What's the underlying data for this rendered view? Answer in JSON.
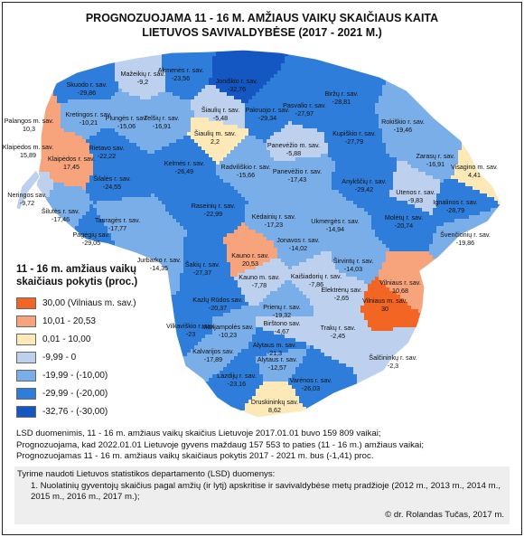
{
  "title": {
    "line1": "PROGNOZUOJAMA 11 - 16 M. AMŽIAUS VAIKŲ SKAIČIAUS KAITA",
    "line2": "LIETUVOS SAVIVALDYBĖSE (2017 - 2021 M.)"
  },
  "colors": {
    "sea": "#ffffff",
    "border": "#ffffff",
    "frame": "#222222"
  },
  "legend": {
    "title_line1": "11 - 16 m. amžiaus vaikų",
    "title_line2": "skaičiaus pokytis (proc.)",
    "classes": [
      {
        "label": "30,00 (Vilniaus m. sav.)",
        "color": "#f26522"
      },
      {
        "label": "10,01 - 20,53",
        "color": "#f7a47c"
      },
      {
        "label": "0,01 - 10,00",
        "color": "#fde9b8"
      },
      {
        "label": "-9,99 - 0",
        "color": "#bdd0ee"
      },
      {
        "label": "-19,99 - (-10,00)",
        "color": "#7aaee8"
      },
      {
        "label": "-29,99 - (-20,00)",
        "color": "#2f7ddb"
      },
      {
        "label": "-32,76 - (-30,00)",
        "color": "#1457c2"
      }
    ]
  },
  "municipalities": [
    {
      "name": "Mažeikių r. sav.",
      "value": "-9,2",
      "class": 3
    },
    {
      "name": "Akmenės r. sav.",
      "value": "-23,56",
      "class": 5
    },
    {
      "name": "Joniškio r. sav.",
      "value": "-32,76",
      "class": 6
    },
    {
      "name": "Biržų r. sav.",
      "value": "-28,81",
      "class": 5
    },
    {
      "name": "Skuodo r. sav.",
      "value": "-29,86",
      "class": 5
    },
    {
      "name": "Pasvalio r. sav.",
      "value": "-27,97",
      "class": 5
    },
    {
      "name": "Pakruojo r. sav.",
      "value": "-29,34",
      "class": 5
    },
    {
      "name": "Šiaulių r. sav.",
      "value": "-5,48",
      "class": 3
    },
    {
      "name": "Šiaulių m. sav.",
      "value": "2,2",
      "class": 2
    },
    {
      "name": "Kretingos r. sav.",
      "value": "-10,21",
      "class": 4
    },
    {
      "name": "Plungės r. sav.",
      "value": "-15,06",
      "class": 4
    },
    {
      "name": "Telšių r. sav.",
      "value": "-16,91",
      "class": 4
    },
    {
      "name": "Palangos m. sav.",
      "value": "10,3",
      "class": 1
    },
    {
      "name": "Klaipėdos m. sav.",
      "value": "15,89",
      "class": 1
    },
    {
      "name": "Klaipėdos r. sav.",
      "value": "17,45",
      "class": 1
    },
    {
      "name": "Rokiškio r. sav.",
      "value": "-19,46",
      "class": 4
    },
    {
      "name": "Kupiškio r. sav.",
      "value": "-27,79",
      "class": 5
    },
    {
      "name": "Panevėžio m. sav.",
      "value": "-5,88",
      "class": 3
    },
    {
      "name": "Panevėžio r. sav.",
      "value": "-17,43",
      "class": 4
    },
    {
      "name": "Zarasų r. sav.",
      "value": "-16,91",
      "class": 4
    },
    {
      "name": "Visagino m. sav.",
      "value": "4,41",
      "class": 2
    },
    {
      "name": "Rietavo sav.",
      "value": "-22,22",
      "class": 5
    },
    {
      "name": "Kelmės r. sav.",
      "value": "-26,49",
      "class": 5
    },
    {
      "name": "Radviliškio r. sav.",
      "value": "-15,66",
      "class": 4
    },
    {
      "name": "Anykščių r. sav.",
      "value": "-29,42",
      "class": 5
    },
    {
      "name": "Utenos r. sav.",
      "value": "-9,83",
      "class": 3
    },
    {
      "name": "Ignalinos r. sav.",
      "value": "-28,79",
      "class": 5
    },
    {
      "name": "Šilalės r. sav.",
      "value": "-24,55",
      "class": 5
    },
    {
      "name": "Kėdainių r. sav.",
      "value": "-17,23",
      "class": 4
    },
    {
      "name": "Molėtų r. sav.",
      "value": "-20,74",
      "class": 5
    },
    {
      "name": "Neringos sav.",
      "value": "-9,72",
      "class": 3
    },
    {
      "name": "Šilutės r. sav.",
      "value": "-17,46",
      "class": 4
    },
    {
      "name": "Tauragės r. sav.",
      "value": "-17,77",
      "class": 4
    },
    {
      "name": "Raseinių r. sav.",
      "value": "-22,99",
      "class": 5
    },
    {
      "name": "Ukmergės r. sav.",
      "value": "-14,94",
      "class": 4
    },
    {
      "name": "Švenčionių r. sav.",
      "value": "-19,86",
      "class": 4
    },
    {
      "name": "Pagėgių sav.",
      "value": "-29,05",
      "class": 5
    },
    {
      "name": "Jurbarko r. sav.",
      "value": "-14,35",
      "class": 4
    },
    {
      "name": "Jonavos r. sav.",
      "value": "-14,02",
      "class": 4
    },
    {
      "name": "Širvintų r. sav.",
      "value": "-14,03",
      "class": 4
    },
    {
      "name": "Kauno r. sav.",
      "value": "20,53",
      "class": 1
    },
    {
      "name": "Kauno m. sav.",
      "value": "-7,78",
      "class": 3
    },
    {
      "name": "Šakių r. sav.",
      "value": "-27,37",
      "class": 5
    },
    {
      "name": "Kaišiadorių r. sav.",
      "value": "-7,86",
      "class": 3
    },
    {
      "name": "Elektrėnų sav.",
      "value": "-2,65",
      "class": 3
    },
    {
      "name": "Vilniaus r. sav.",
      "value": "10,68",
      "class": 1
    },
    {
      "name": "Vilniaus m. sav.",
      "value": "30",
      "class": 0
    },
    {
      "name": "Kazlų Rūdos sav.",
      "value": "-20,37",
      "class": 5
    },
    {
      "name": "Prienų r. sav.",
      "value": "-19,32",
      "class": 4
    },
    {
      "name": "Vilkaviškio r. sav.",
      "value": "-23",
      "class": 5
    },
    {
      "name": "Marijampolės sav.",
      "value": "-10,23",
      "class": 4
    },
    {
      "name": "Birštono sav.",
      "value": "-4,67",
      "class": 3
    },
    {
      "name": "Trakų r. sav.",
      "value": "-2,45",
      "class": 3
    },
    {
      "name": "Kalvarijos sav.",
      "value": "-17,89",
      "class": 4
    },
    {
      "name": "Alytaus m. sav.",
      "value": "-21,3",
      "class": 5
    },
    {
      "name": "Alytaus r. sav.",
      "value": "-12,57",
      "class": 4
    },
    {
      "name": "Šalčininkų r. sav.",
      "value": "-2,3",
      "class": 3
    },
    {
      "name": "Lazdijų r. sav.",
      "value": "-23,16",
      "class": 5
    },
    {
      "name": "Varėnos r. sav.",
      "value": "-26,03",
      "class": 5
    },
    {
      "name": "Druskininkų sav.",
      "value": "8,62",
      "class": 2
    }
  ],
  "notes": {
    "line1": "LSD duomenimis, 11 - 16 m. amžiaus vaikų skaičius Lietuvoje 2017.01.01 buvo 159 809 vaikai;",
    "line2": "Prognozuojama, kad 2022.01.01 Lietuvoje gyvens maždaug 157 553 to paties (11 - 16 m.) amžiaus vaikai;",
    "line3": "Prognozuojamas 11 - 16 m. amžiaus vaikų skaičiaus pokytis 2017 - 2021 m. bus (-1,41) proc."
  },
  "source": {
    "intro": "Tyrime naudoti Lietuvos statistikos departamento (LSD) duomenys:",
    "item": "1. Nuolatinių gyventojų skaičius pagal amžių (ir lytį) apskritise ir savivaldybėse metų pradžioje  (2012 m., 2013 m., 2014 m., 2015 m., 2016 m., 2017 m.);",
    "copyright": "© dr. Rolandas Tučas, 2017 m."
  }
}
